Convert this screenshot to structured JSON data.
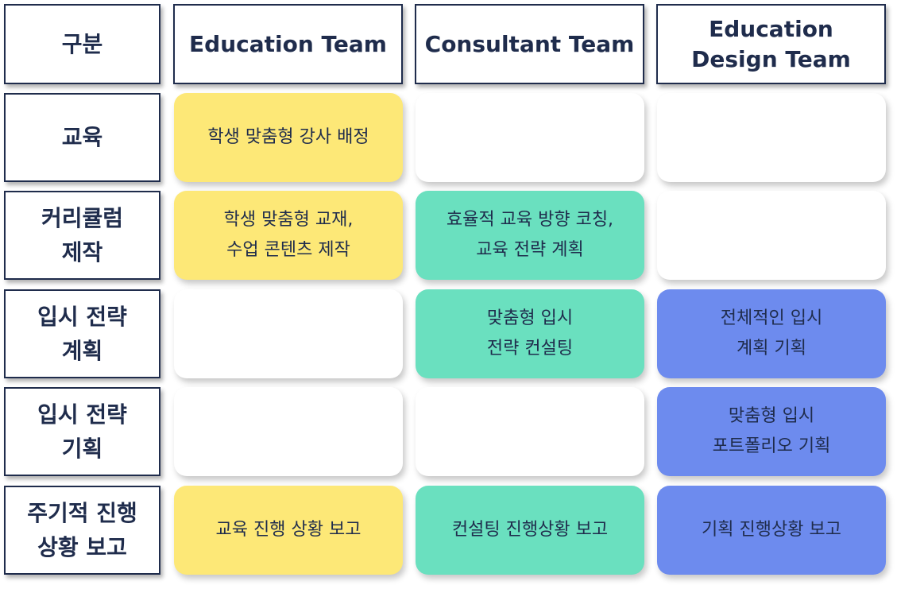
{
  "colors": {
    "header_border": "#1f2c4c",
    "text": "#1f2c4c",
    "education_team": "#fde877",
    "consultant_team": "#6ae0bf",
    "design_team": "#6d8bee"
  },
  "corner_header": "구분",
  "column_headers": {
    "education": "Education Team",
    "consultant": "Consultant Team",
    "design_line1": "Education",
    "design_line2": "Design Team"
  },
  "rows": [
    {
      "header_lines": [
        "교육"
      ],
      "education": [
        "학생 맞춤형 강사 배정"
      ],
      "consultant": [],
      "design": []
    },
    {
      "header_lines": [
        "커리큘럼",
        "제작"
      ],
      "education": [
        "학생 맞춤형 교재,",
        "수업 콘텐츠 제작"
      ],
      "consultant": [
        "효율적 교육 방향 코칭,",
        "교육 전략 계획"
      ],
      "design": []
    },
    {
      "header_lines": [
        "입시 전략",
        "계획"
      ],
      "education": [],
      "consultant": [
        "맞춤형 입시",
        "전략 컨설팅"
      ],
      "design": [
        "전체적인 입시",
        "계획 기획"
      ]
    },
    {
      "header_lines": [
        "입시 전략",
        "기획"
      ],
      "education": [],
      "consultant": [],
      "design": [
        "맞춤형 입시",
        "포트폴리오 기획"
      ]
    },
    {
      "header_lines": [
        "주기적 진행",
        "상황 보고"
      ],
      "education": [
        "교육 진행 상황 보고"
      ],
      "consultant": [
        "컨설팅 진행상황 보고"
      ],
      "design": [
        "기획 진행상황 보고"
      ]
    }
  ]
}
